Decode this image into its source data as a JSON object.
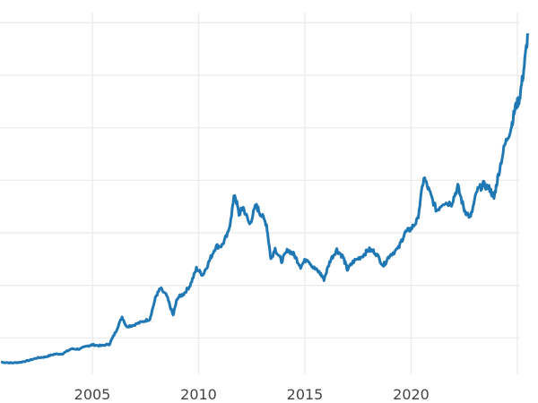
{
  "chart_data": {
    "type": "line",
    "title": "",
    "xlabel": "",
    "ylabel": "",
    "x_ticks": [
      "2005",
      "2010",
      "2015",
      "2020"
    ],
    "xlim": [
      2000.7,
      2025.6
    ],
    "ylim": [
      0,
      3600
    ],
    "y_gridlines": [
      500,
      1000,
      1500,
      2000,
      2500,
      3000,
      3500
    ],
    "grid": true,
    "line_color": "#1f77b4",
    "series": [
      {
        "x": [
          2000.7,
          2001.2,
          2001.6,
          2002.0,
          2002.4,
          2002.8,
          2003.2,
          2003.6,
          2004.0,
          2004.4,
          2004.8,
          2005.0,
          2005.4,
          2005.8,
          2006.1,
          2006.4,
          2006.6,
          2006.9,
          2007.3,
          2007.7,
          2008.0,
          2008.2,
          2008.5,
          2008.8,
          2009.0,
          2009.3,
          2009.6,
          2009.9,
          2010.2,
          2010.5,
          2010.8,
          2011.1,
          2011.4,
          2011.7,
          2011.9,
          2012.1,
          2012.4,
          2012.7,
          2012.9,
          2013.2,
          2013.4,
          2013.6,
          2013.9,
          2014.2,
          2014.5,
          2014.8,
          2015.1,
          2015.4,
          2015.7,
          2015.9,
          2016.2,
          2016.5,
          2016.8,
          2017.0,
          2017.3,
          2017.7,
          2018.0,
          2018.3,
          2018.7,
          2019.0,
          2019.4,
          2019.7,
          2020.0,
          2020.3,
          2020.6,
          2020.9,
          2021.2,
          2021.5,
          2021.9,
          2022.2,
          2022.5,
          2022.8,
          2023.1,
          2023.4,
          2023.7,
          2023.9,
          2024.1,
          2024.4,
          2024.7,
          2024.9,
          2025.1,
          2025.3,
          2025.5
        ],
        "values": [
          270,
          262,
          268,
          285,
          310,
          320,
          345,
          350,
          395,
          395,
          425,
          435,
          425,
          440,
          560,
          700,
          610,
          620,
          650,
          680,
          900,
          970,
          900,
          715,
          880,
          920,
          1000,
          1160,
          1100,
          1230,
          1370,
          1380,
          1500,
          1870,
          1680,
          1740,
          1580,
          1760,
          1690,
          1580,
          1250,
          1350,
          1230,
          1340,
          1290,
          1180,
          1260,
          1170,
          1120,
          1060,
          1240,
          1340,
          1270,
          1150,
          1230,
          1280,
          1340,
          1320,
          1190,
          1290,
          1350,
          1500,
          1540,
          1620,
          2030,
          1870,
          1710,
          1790,
          1780,
          1940,
          1720,
          1645,
          1900,
          1960,
          1920,
          1830,
          2050,
          2330,
          2500,
          2690,
          2780,
          3050,
          3400
        ]
      }
    ]
  }
}
